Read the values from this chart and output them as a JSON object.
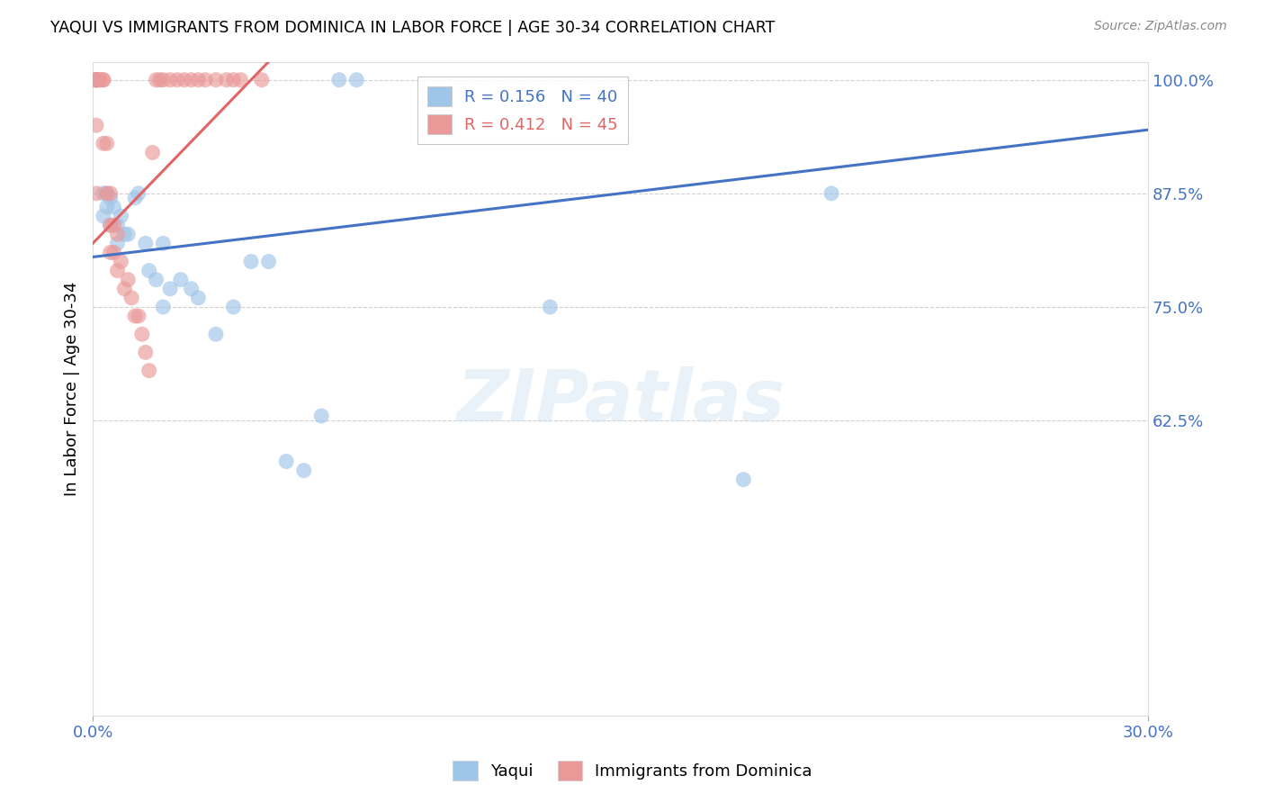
{
  "title": "YAQUI VS IMMIGRANTS FROM DOMINICA IN LABOR FORCE | AGE 30-34 CORRELATION CHART",
  "source": "Source: ZipAtlas.com",
  "ylabel": "In Labor Force | Age 30-34",
  "xlim": [
    0.0,
    0.3
  ],
  "ylim": [
    0.3,
    1.02
  ],
  "ytick_vals": [
    0.625,
    0.75,
    0.875,
    1.0
  ],
  "ytick_labels": [
    "62.5%",
    "75.0%",
    "87.5%",
    "100.0%"
  ],
  "xtick_vals": [
    0.0,
    0.3
  ],
  "xtick_labels": [
    "0.0%",
    "30.0%"
  ],
  "blue_R": 0.156,
  "blue_N": 40,
  "pink_R": 0.412,
  "pink_N": 45,
  "blue_color": "#9fc5e8",
  "pink_color": "#ea9999",
  "blue_line_color": "#4472c4",
  "pink_line_color": "#e06666",
  "axis_color": "#4472c4",
  "grid_color": "#cccccc",
  "background_color": "#ffffff",
  "watermark": "ZIPatlas",
  "blue_trend_x": [
    0.0,
    0.3
  ],
  "blue_trend_y": [
    0.805,
    0.945
  ],
  "pink_trend_x": [
    0.0,
    0.05
  ],
  "pink_trend_y": [
    0.82,
    1.02
  ],
  "blue_x": [
    0.001,
    0.001,
    0.001,
    0.001,
    0.001,
    0.003,
    0.003,
    0.004,
    0.004,
    0.005,
    0.005,
    0.006,
    0.007,
    0.007,
    0.008,
    0.009,
    0.01,
    0.012,
    0.013,
    0.015,
    0.016,
    0.018,
    0.02,
    0.022,
    0.025,
    0.028,
    0.03,
    0.04,
    0.045,
    0.05,
    0.055,
    0.06,
    0.065,
    0.07,
    0.075,
    0.13,
    0.185,
    0.21,
    0.02,
    0.035
  ],
  "blue_y": [
    1.0,
    1.0,
    1.0,
    1.0,
    1.0,
    0.875,
    0.85,
    0.875,
    0.86,
    0.87,
    0.84,
    0.86,
    0.84,
    0.82,
    0.85,
    0.83,
    0.83,
    0.87,
    0.875,
    0.82,
    0.79,
    0.78,
    0.82,
    0.77,
    0.78,
    0.77,
    0.76,
    0.75,
    0.8,
    0.8,
    0.58,
    0.57,
    0.63,
    1.0,
    1.0,
    0.75,
    0.56,
    0.875,
    0.75,
    0.72
  ],
  "pink_x": [
    0.001,
    0.001,
    0.001,
    0.001,
    0.001,
    0.001,
    0.001,
    0.002,
    0.002,
    0.003,
    0.003,
    0.003,
    0.004,
    0.004,
    0.005,
    0.005,
    0.005,
    0.006,
    0.006,
    0.007,
    0.007,
    0.008,
    0.009,
    0.01,
    0.011,
    0.012,
    0.013,
    0.014,
    0.015,
    0.016,
    0.017,
    0.018,
    0.019,
    0.02,
    0.022,
    0.024,
    0.026,
    0.028,
    0.03,
    0.032,
    0.035,
    0.038,
    0.04,
    0.042,
    0.048
  ],
  "pink_y": [
    1.0,
    1.0,
    1.0,
    1.0,
    1.0,
    0.95,
    0.875,
    1.0,
    1.0,
    1.0,
    1.0,
    0.93,
    0.93,
    0.875,
    0.875,
    0.84,
    0.81,
    0.84,
    0.81,
    0.83,
    0.79,
    0.8,
    0.77,
    0.78,
    0.76,
    0.74,
    0.74,
    0.72,
    0.7,
    0.68,
    0.92,
    1.0,
    1.0,
    1.0,
    1.0,
    1.0,
    1.0,
    1.0,
    1.0,
    1.0,
    1.0,
    1.0,
    1.0,
    1.0,
    1.0
  ]
}
